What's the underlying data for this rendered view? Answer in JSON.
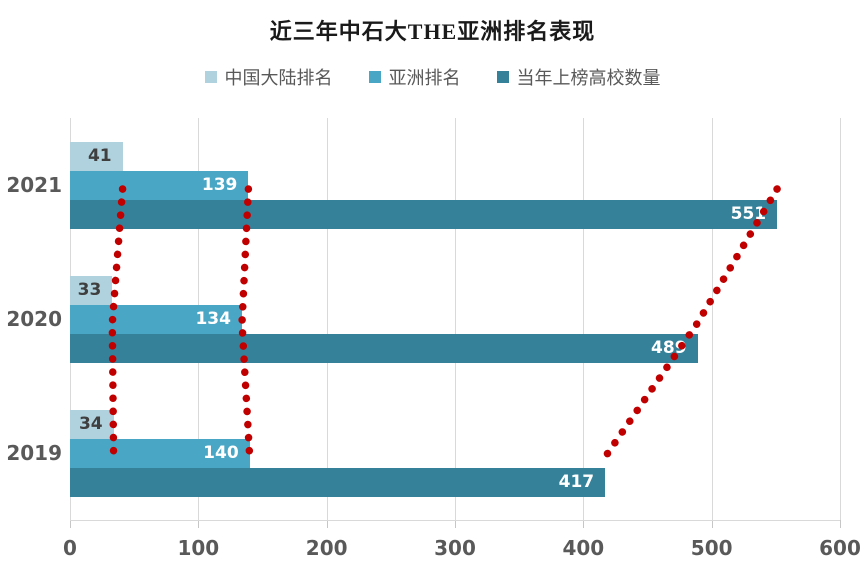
{
  "title": "近三年中石大THE亚洲排名表现",
  "colors": {
    "background": "#ffffff",
    "gridline": "#d9d9d9",
    "axis_text": "#595959",
    "title_text": "#1a1a1a",
    "trend_dots": "#c00000"
  },
  "chart_data": {
    "type": "bar",
    "orientation": "horizontal",
    "title": "近三年中石大THE亚洲排名表现",
    "categories": [
      "2021",
      "2020",
      "2019"
    ],
    "series": [
      {
        "name": "中国大陆排名",
        "color": "#b0d2de",
        "label_color": "#3f3f3f",
        "values": [
          41,
          33,
          34
        ]
      },
      {
        "name": "亚洲排名",
        "color": "#4aa6c5",
        "label_color": "#ffffff",
        "values": [
          139,
          134,
          140
        ]
      },
      {
        "name": "当年上榜高校数量",
        "color": "#35819a",
        "label_color": "#ffffff",
        "values": [
          551,
          489,
          417
        ]
      }
    ],
    "x_ticks": [
      "0",
      "100",
      "200",
      "300",
      "400",
      "500",
      "600"
    ],
    "xlim": [
      0,
      600
    ],
    "grid": "vertical-only",
    "legend_position": "top-center",
    "annotations": {
      "trend_lines_per_series": true,
      "style": "red dotted line through the end of each series bar across years",
      "color": "#c00000"
    }
  }
}
